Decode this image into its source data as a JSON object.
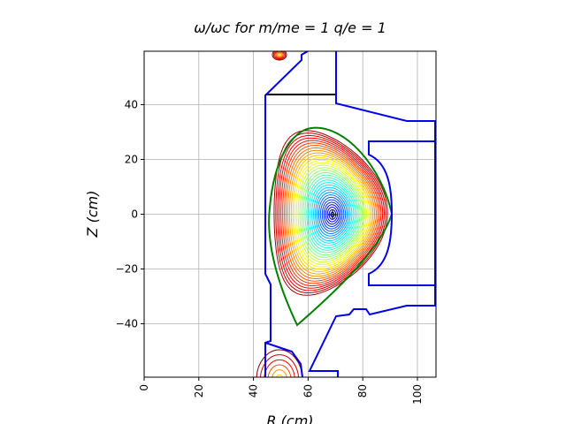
{
  "chart_data": {
    "type": "contour",
    "title": "ω/ωc  for  m/me = 1  q/e = 1",
    "x_label": "R  (cm)",
    "y_label": "Z  (cm)",
    "xlim": [
      0,
      106.8
    ],
    "ylim": [
      -59.5,
      59.5
    ],
    "xticks": [
      0,
      20,
      40,
      60,
      80,
      100
    ],
    "yticks": [
      {
        "value": -40,
        "label": "−40"
      },
      {
        "value": -20,
        "label": "−20"
      },
      0,
      20,
      40
    ],
    "grid": true
  }
}
